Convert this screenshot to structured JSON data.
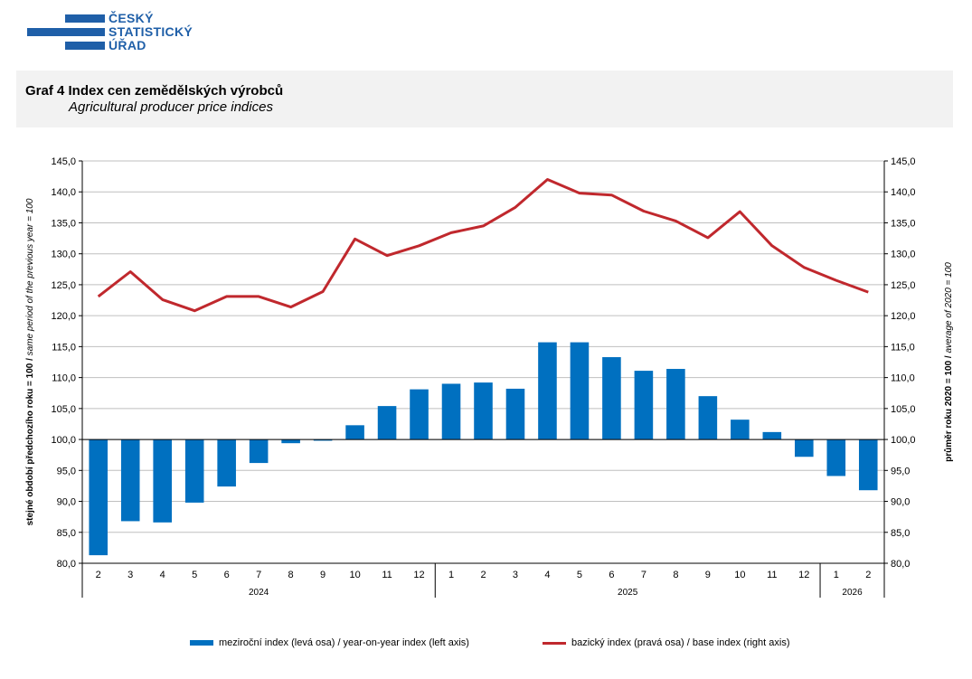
{
  "logo": {
    "line1": "ČESKÝ",
    "line2": "STATISTICKÝ",
    "line3": "ÚŘAD",
    "color": "#1f5fa8"
  },
  "header": {
    "title_cz": "Graf 4 Index cen zemědělských výrobců",
    "title_en": "Agricultural producer price indices"
  },
  "chart_data": {
    "type": "bar+line",
    "title": "Graf 4 Index cen zemědělských výrobců / Agricultural producer price indices",
    "categories": [
      "2",
      "3",
      "4",
      "5",
      "6",
      "7",
      "8",
      "9",
      "10",
      "11",
      "12",
      "1",
      "2",
      "3",
      "4",
      "5",
      "6",
      "7",
      "8",
      "9",
      "10",
      "11",
      "12",
      "1",
      "2"
    ],
    "years": [
      {
        "label": "2024",
        "start": 0,
        "end": 10
      },
      {
        "label": "2025",
        "start": 11,
        "end": 22
      },
      {
        "label": "2026",
        "start": 23,
        "end": 24
      }
    ],
    "series": [
      {
        "name": "meziroční index (levá osa) / year-on-year index (left axis)",
        "type": "bar",
        "axis": "left",
        "color": "#0070c0",
        "values": [
          81.3,
          86.8,
          86.6,
          89.8,
          92.4,
          96.2,
          99.4,
          99.8,
          102.3,
          105.4,
          108.1,
          109.0,
          109.2,
          108.2,
          115.7,
          115.7,
          113.3,
          111.1,
          111.4,
          107.0,
          103.2,
          101.2,
          97.2,
          94.1,
          91.8
        ]
      },
      {
        "name": "bazický index (pravá osa) / base index (right axis)",
        "type": "line",
        "axis": "right",
        "color": "#c0282d",
        "values": [
          123.1,
          127.1,
          122.6,
          120.8,
          123.1,
          123.1,
          121.4,
          123.9,
          132.4,
          129.7,
          131.3,
          133.4,
          134.5,
          137.5,
          142.0,
          139.8,
          139.5,
          136.9,
          135.3,
          132.6,
          136.8,
          131.3,
          127.8,
          125.7,
          123.8
        ]
      }
    ],
    "ylim_left": [
      80,
      145
    ],
    "ylim_right": [
      80,
      145
    ],
    "yticks": [
      "80,0",
      "85,0",
      "90,0",
      "95,0",
      "100,0",
      "105,0",
      "110,0",
      "115,0",
      "120,0",
      "125,0",
      "130,0",
      "135,0",
      "140,0",
      "145,0"
    ],
    "ylabel_left": {
      "bold": "stejné období předchozího roku = 100 / ",
      "italic": "same period of the previous year = 100"
    },
    "ylabel_right": {
      "bold": "průměr roku 2020 = 100 / ",
      "italic": "average of 2020 = 100"
    },
    "baseline": 100,
    "grid": true,
    "legend_position": "bottom"
  }
}
